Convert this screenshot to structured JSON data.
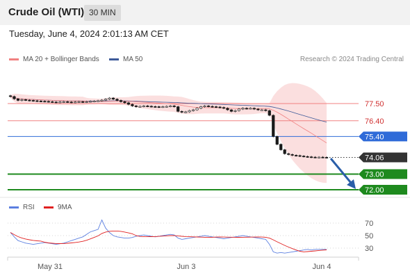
{
  "header": {
    "title": "Crude Oil (WTI)",
    "timeframe": "30 MIN",
    "datetime": "Tuesday, June 4, 2024 2:01:13 AM CET"
  },
  "legend": {
    "ma20_label": "MA 20 + Bollinger Bands",
    "ma50_label": "MA 50",
    "copyright": "Research © 2024 Trading Central"
  },
  "levels": [
    {
      "label": "77.50",
      "type": "resistance"
    },
    {
      "label": "76.40",
      "type": "resistance"
    },
    {
      "label": "75.40",
      "type": "pivot"
    },
    {
      "label": "74.06",
      "type": "last-price"
    },
    {
      "label": "73.00",
      "type": "support"
    },
    {
      "label": "72.00",
      "type": "support"
    }
  ],
  "rsi": {
    "rsi_label": "RSI",
    "ma_label": "9MA",
    "ticks": [
      "70",
      "50",
      "30"
    ]
  },
  "xaxis": {
    "labels": [
      "May 31",
      "Jun 3",
      "Jun 4"
    ]
  },
  "colors": {
    "resistance": "#f08080",
    "pivot": "#2f6bd8",
    "support": "#1e8a1e",
    "last": "#333333",
    "ma20": "#f08080",
    "ma50": "#3d5a99",
    "rsi": "#5b7fe0",
    "rsi_ma": "#e02020",
    "arrow": "#2a5ea8"
  },
  "chart_data": {
    "type": "candlestick",
    "series": [
      {
        "name": "MA 20 + Bollinger Bands"
      },
      {
        "name": "MA 50"
      }
    ],
    "close": [
      77.95,
      77.8,
      77.7,
      77.75,
      77.72,
      77.7,
      77.68,
      77.66,
      77.65,
      77.64,
      77.62,
      77.6,
      77.58,
      77.6,
      77.62,
      77.6,
      77.58,
      77.6,
      77.62,
      77.6,
      77.62,
      77.64,
      77.66,
      77.68,
      77.72,
      77.78,
      77.85,
      77.78,
      77.7,
      77.62,
      77.55,
      77.45,
      77.35,
      77.3,
      77.32,
      77.35,
      77.33,
      77.31,
      77.3,
      77.28,
      77.3,
      77.32,
      77.35,
      77.3,
      77.0,
      76.95,
      76.97,
      77.05,
      77.1,
      77.2,
      77.3,
      77.35,
      77.32,
      77.3,
      77.28,
      77.25,
      77.2,
      77.1,
      77.0,
      77.05,
      77.15,
      77.2,
      77.18,
      77.2,
      77.15,
      77.1,
      77.1,
      77.05,
      76.75,
      75.4,
      74.9,
      74.55,
      74.3,
      74.25,
      74.2,
      74.18,
      74.15,
      74.12,
      74.1,
      74.08,
      74.07,
      74.08,
      74.07,
      74.06
    ],
    "rsi_values": [
      55,
      48,
      42,
      40,
      38,
      37,
      36,
      37,
      38,
      39,
      38,
      37,
      36,
      37,
      38,
      40,
      42,
      44,
      46,
      48,
      52,
      56,
      58,
      60,
      75,
      62,
      55,
      50,
      48,
      47,
      46,
      46,
      47,
      49,
      50,
      51,
      50,
      49,
      48,
      49,
      50,
      51,
      52,
      51,
      46,
      44,
      45,
      46,
      47,
      48,
      49,
      50,
      49,
      48,
      47,
      46,
      45,
      46,
      47,
      48,
      49,
      50,
      49,
      48,
      47,
      46,
      45,
      44,
      36,
      24,
      22,
      23,
      22,
      23,
      24,
      25,
      26,
      27,
      28,
      27,
      28,
      28,
      28,
      28
    ],
    "ticks_y": [
      77.5,
      76.4,
      75.4,
      74.06,
      73.0,
      72.0
    ]
  }
}
